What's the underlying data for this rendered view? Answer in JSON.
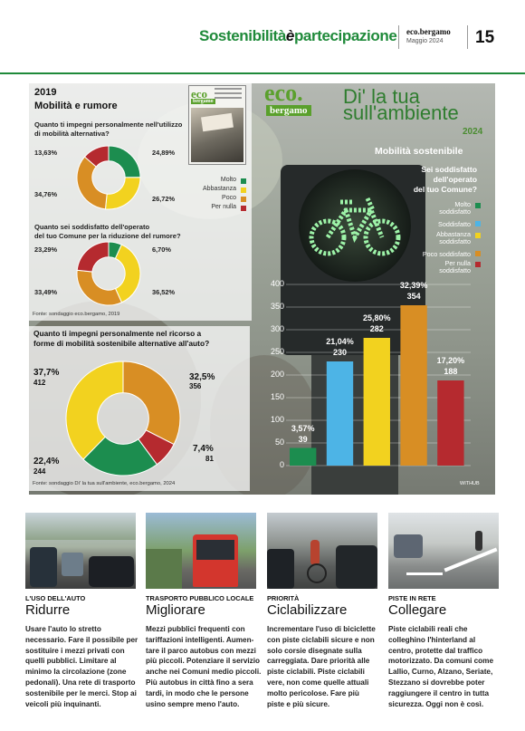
{
  "header": {
    "section_a": "Sostenibilità",
    "section_join": "è",
    "section_b": "partecipazione",
    "brand": "eco.bergamo",
    "date": "Maggio 2024",
    "page": "15"
  },
  "panel2019": {
    "year": "2019",
    "title": "Mobilità e rumore",
    "q1": "Quanto ti impegni personalmente nell'utilizzo\ndi mobilità alternativa?",
    "q1_labels": [
      "24,89%",
      "26,72%",
      "34,76%",
      "13,63%"
    ],
    "q2": "Quanto sei soddisfatto dell'operato\ndel tuo Comune per la riduzione del rumore?",
    "q2_labels": [
      "6,70%",
      "36,52%",
      "33,49%",
      "23,29%"
    ],
    "legend": [
      "Molto",
      "Abbastanza",
      "Poco",
      "Per nulla"
    ],
    "source": "Fonte: sondaggio eco.bergamo, 2019"
  },
  "panel2024": {
    "q": "Quanto ti impegni personalmente nel ricorso a\nforme di mobilità sostenibile alternative all'auto?",
    "labels": [
      {
        "pct": "32,5%",
        "n": "356"
      },
      {
        "pct": "7,4%",
        "n": "81"
      },
      {
        "pct": "22,4%",
        "n": "244"
      },
      {
        "pct": "37,7%",
        "n": "412"
      }
    ],
    "source": "Fonte: sondaggio Di' la tua sull'ambiente, eco.bergamo, 2024"
  },
  "feature": {
    "eco": "eco.",
    "bergamo": "bergamo",
    "title_1": "Di' la tua",
    "title_2": "sull'ambiente",
    "year": "2024",
    "chart_title": "Mobilità sostenibile",
    "question": "Sei soddisfatto\ndell'operato\ndel tuo Comune?",
    "legend": [
      "Molto\nsoddisfatto",
      "Soddisfatto",
      "Abbastanza\nsoddisfatto",
      "Poco soddisfatto",
      "Per nulla\nsoddisfatto"
    ],
    "credit": "WITHUB"
  },
  "chart_data": [
    {
      "type": "pie",
      "title": "Quanto ti impegni personalmente nell'utilizzo di mobilità alternativa?",
      "categories": [
        "Molto",
        "Abbastanza",
        "Poco",
        "Per nulla"
      ],
      "values": [
        24.89,
        26.72,
        34.76,
        13.63
      ],
      "colors": [
        "#1c8d4f",
        "#f2d21f",
        "#d88e24",
        "#b52a2f"
      ]
    },
    {
      "type": "pie",
      "title": "Quanto sei soddisfatto dell'operato del tuo Comune per la riduzione del rumore?",
      "categories": [
        "Molto",
        "Abbastanza",
        "Poco",
        "Per nulla"
      ],
      "values": [
        6.7,
        36.52,
        33.49,
        23.29
      ],
      "colors": [
        "#1c8d4f",
        "#f2d21f",
        "#d88e24",
        "#b52a2f"
      ]
    },
    {
      "type": "pie",
      "title": "Quanto ti impegni personalmente nel ricorso a forme di mobilità sostenibile alternative all'auto?",
      "categories": [
        "Poco",
        "Per nulla",
        "Molto",
        "Abbastanza"
      ],
      "values": [
        32.5,
        7.4,
        22.4,
        37.7
      ],
      "counts": [
        356,
        81,
        244,
        412
      ],
      "colors": [
        "#d88e24",
        "#b52a2f",
        "#1c8d4f",
        "#f2d21f"
      ]
    },
    {
      "type": "bar",
      "title": "Mobilità sostenibile",
      "categories": [
        "Molto soddisfatto",
        "Soddisfatto",
        "Abbastanza soddisfatto",
        "Poco soddisfatto",
        "Per nulla soddisfatto"
      ],
      "values": [
        39,
        230,
        282,
        354,
        188
      ],
      "percent_labels": [
        "3,57%",
        "21,04%",
        "25,80%",
        "32,39%",
        "17,20%"
      ],
      "colors": [
        "#1c8d4f",
        "#4db4e6",
        "#f2d21f",
        "#d88e24",
        "#b52a2f"
      ],
      "ylim": [
        0,
        400
      ],
      "yticks": [
        0,
        50,
        100,
        150,
        200,
        250,
        300,
        350,
        400
      ]
    }
  ],
  "articles": [
    {
      "kicker": "L'USO DELL'AUTO",
      "head": "Ridurre",
      "body": "Usare l'auto lo stretto\nnecessario. Fare il possibile per\nsostituire i mezzi privati con\nquelli pubblici. Limitare al\nminimo la circolazione (zone\npedonali). Una rete di trasporto\nsostenibile per le merci. Stop ai\nveicoli più inquinanti."
    },
    {
      "kicker": "TRASPORTO PUBBLICO LOCALE",
      "head": "Migliorare",
      "body": "Mezzi pubblici frequenti con\ntariffazioni intelligenti. Aumen-\ntare il parco autobus con mezzi\npiù piccoli. Potenziare il servizio\nanche nei Comuni medio piccoli.\nPiù autobus in città fino a sera\ntardi, in modo che le persone\nusino sempre meno l'auto."
    },
    {
      "kicker": "PRIORITÀ",
      "head": "Ciclabilizzare",
      "body": "Incrementare l'uso di biciclette\ncon piste ciclabili sicure e non\nsolo corsie disegnate sulla\ncarreggiata. Dare priorità alle\npiste ciclabili. Piste ciclabili\nvere, non come quelle attuali\nmolto pericolose. Fare più\npiste e più sicure."
    },
    {
      "kicker": "PISTE IN RETE",
      "head": "Collegare",
      "body": "Piste ciclabili reali che\ncolleghino l'hinterland al\ncentro, protette dal traffico\nmotorizzato. Da comuni come\nLallio, Curno, Alzano, Seriate,\nStezzano si dovrebbe poter\nraggiungere il centro in tutta\nsicurezza. Oggi non è così."
    }
  ]
}
